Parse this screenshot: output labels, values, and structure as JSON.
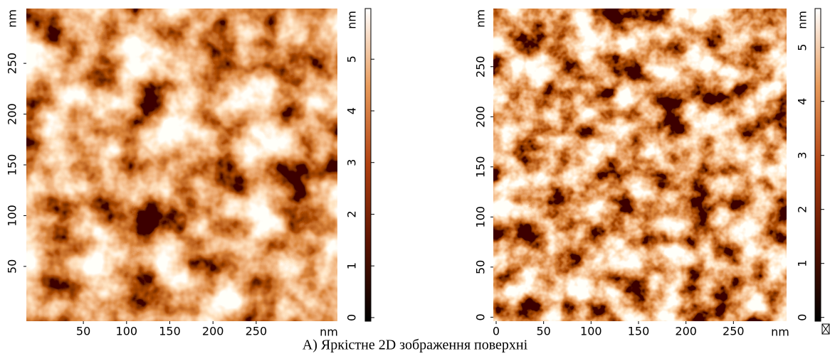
{
  "panels": [
    {
      "x_axis_unit": "nm",
      "y_axis_unit": "nm",
      "xticks": [
        50,
        100,
        150,
        200,
        250
      ],
      "yticks": [
        50,
        100,
        150,
        200,
        250
      ],
      "xlim": [
        -16,
        344
      ],
      "ylim": [
        -4,
        304
      ],
      "colorbar": {
        "unit": "nm",
        "ticks": [
          0,
          1,
          2,
          3,
          4,
          5
        ],
        "lim": [
          -0.07,
          5.98
        ]
      }
    },
    {
      "x_axis_unit": "nm",
      "y_axis_unit": "nm",
      "xticks": [
        0,
        50,
        100,
        150,
        200,
        250
      ],
      "yticks": [
        0,
        50,
        100,
        150,
        200,
        250
      ],
      "xlim": [
        -3,
        306
      ],
      "ylim": [
        -4,
        308
      ],
      "colorbar": {
        "unit": "nm",
        "ticks": [
          0,
          1,
          2,
          3,
          4,
          5
        ],
        "lim": [
          -0.07,
          5.72
        ]
      }
    }
  ],
  "caption": "A) Яркістне 2D зображення поверхні"
}
